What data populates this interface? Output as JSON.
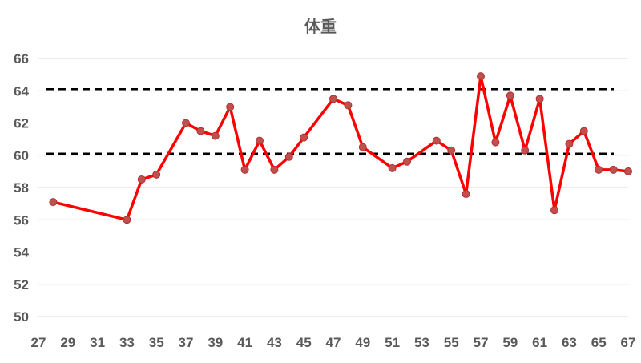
{
  "chart_data": {
    "type": "line",
    "title": "体重",
    "ylim": [
      50,
      66
    ],
    "yticks": [
      50,
      52,
      54,
      56,
      58,
      60,
      62,
      64,
      66
    ],
    "xlim": [
      27,
      67
    ],
    "xticks": [
      27,
      29,
      31,
      33,
      35,
      37,
      39,
      41,
      43,
      45,
      47,
      49,
      51,
      53,
      55,
      57,
      59,
      61,
      63,
      65,
      67
    ],
    "grid": true,
    "legend": "none",
    "series": [
      {
        "color": "#ff0000",
        "marker_color": "#c0504d",
        "x": [
          28,
          33,
          34,
          35,
          37,
          38,
          39,
          40,
          41,
          42,
          43,
          44,
          45,
          47,
          48,
          49,
          51,
          52,
          54,
          55,
          56,
          57,
          58,
          59,
          60,
          61,
          62,
          63,
          64,
          65,
          66,
          67
        ],
        "y": [
          57.1,
          56.0,
          58.5,
          58.8,
          62.0,
          61.5,
          61.2,
          63.0,
          59.1,
          60.9,
          59.1,
          59.9,
          61.1,
          63.5,
          63.1,
          60.5,
          59.2,
          59.6,
          60.9,
          60.3,
          57.6,
          64.9,
          60.8,
          63.7,
          60.3,
          63.5,
          56.6,
          60.7,
          61.5,
          59.1,
          59.1,
          59.0
        ]
      }
    ],
    "reference_lines": [
      {
        "y": 64.1,
        "style": "dashed",
        "color": "#000000"
      },
      {
        "y": 60.1,
        "style": "dashed",
        "color": "#000000"
      }
    ]
  }
}
